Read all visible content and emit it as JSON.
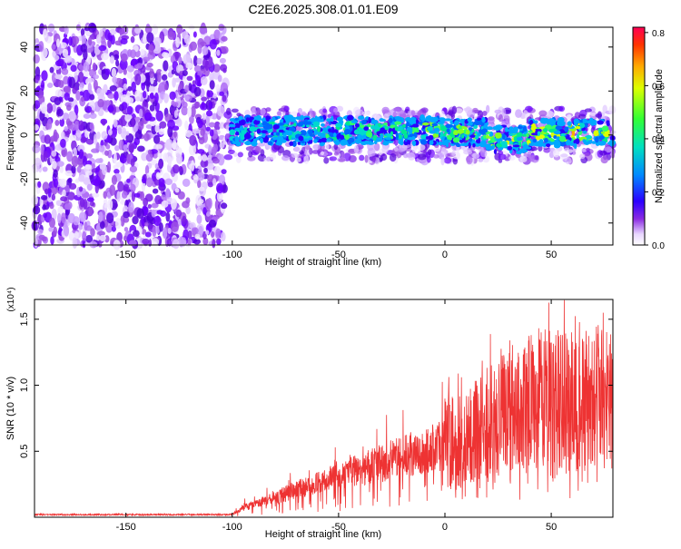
{
  "title": "C2E6.2025.308.01.01.E09",
  "chart_data": [
    {
      "type": "heatmap",
      "title": "C2E6.2025.308.01.01.E09",
      "xlabel": "Height of straight line (km)",
      "ylabel": "Frequency (Hz)",
      "xlim": [
        -193,
        79
      ],
      "ylim": [
        -50,
        49
      ],
      "x_ticks": [
        -150,
        -100,
        -50,
        0,
        50
      ],
      "x_tick_labels": [
        "-150",
        "-100",
        "-50",
        "0",
        "50"
      ],
      "y_ticks": [
        -40,
        -20,
        0,
        20,
        40
      ],
      "y_tick_labels": [
        "-40",
        "-20",
        "0",
        "20",
        "40"
      ],
      "description_of_values": {
        "noise_region_x": [
          -193,
          -103
        ],
        "signal_band_x": [
          -103,
          79
        ],
        "signal_band_center_hz": 0,
        "signal_band_halfwidth_hz": 6
      },
      "colorbar": {
        "label": "Normalized spectral amplitude",
        "range": [
          0.0,
          0.82
        ],
        "ticks": [
          0.0,
          0.2,
          0.4,
          0.6,
          0.8
        ],
        "tick_labels": [
          "0.0",
          "0.2",
          "0.4",
          "0.6",
          "0.8"
        ]
      }
    },
    {
      "type": "line",
      "xlabel": "Height of straight line (km)",
      "ylabel": "SNR (10 * v/v)",
      "y_multiplier": "(x10⁴)",
      "xlim": [
        -193,
        79
      ],
      "ylim": [
        0,
        1.65
      ],
      "x_ticks": [
        -150,
        -100,
        -50,
        0,
        50
      ],
      "x_tick_labels": [
        "-150",
        "-100",
        "-50",
        "0",
        "50"
      ],
      "y_ticks": [
        0.5,
        1.0,
        1.5
      ],
      "y_tick_labels": [
        "0.5",
        "1.0",
        "1.5"
      ],
      "color": "#ee3333",
      "envelope": {
        "x": [
          -193,
          -100,
          -95,
          -80,
          -60,
          -40,
          -20,
          0,
          10,
          20,
          30,
          40,
          60,
          79
        ],
        "y": [
          0.02,
          0.02,
          0.07,
          0.15,
          0.26,
          0.36,
          0.46,
          0.55,
          0.6,
          0.72,
          0.85,
          0.9,
          0.88,
          0.9
        ]
      }
    }
  ]
}
